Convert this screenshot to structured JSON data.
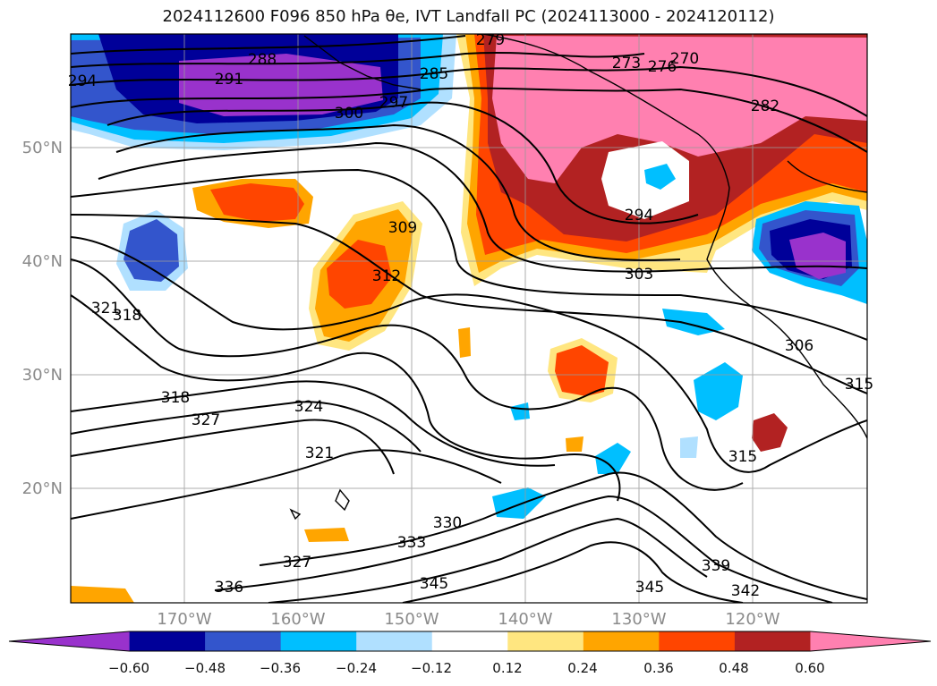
{
  "title": "2024112600 F096 850 hPa θe, IVT Landfall PC (2024113000 - 2024120112)",
  "chart_data": {
    "type": "heatmap",
    "title": "2024112600 F096 850 hPa θe, IVT Landfall PC (2024113000 - 2024120112)",
    "projection": "lat-lon map, North Pacific",
    "extent": {
      "lon": [
        -180,
        -110
      ],
      "lat": [
        10,
        60
      ]
    },
    "lat_ticks": [
      {
        "value": 50,
        "label": "50°N"
      },
      {
        "value": 40,
        "label": "40°N"
      },
      {
        "value": 30,
        "label": "30°N"
      },
      {
        "value": 20,
        "label": "20°N"
      }
    ],
    "lon_ticks": [
      {
        "value": -170,
        "label": "170°W"
      },
      {
        "value": -160,
        "label": "160°W"
      },
      {
        "value": -150,
        "label": "150°W"
      },
      {
        "value": -140,
        "label": "140°W"
      },
      {
        "value": -130,
        "label": "130°W"
      },
      {
        "value": -120,
        "label": "120°W"
      }
    ],
    "grid": true,
    "colorbar": {
      "position": "bottom",
      "extend": "both",
      "levels": [
        -0.72,
        -0.6,
        -0.48,
        -0.36,
        -0.24,
        -0.12,
        0.12,
        0.24,
        0.36,
        0.48,
        0.6,
        0.72
      ],
      "tick_labels": [
        "−0.60",
        "−0.48",
        "−0.36",
        "−0.24",
        "−0.12",
        "0.12",
        "0.24",
        "0.36",
        "0.48",
        "0.60"
      ],
      "colors": [
        "#9932cc",
        "#000099",
        "#3355cc",
        "#00bfff",
        "#b0e0ff",
        "#ffffff",
        "#ffe680",
        "#ffa500",
        "#ff4500",
        "#b22222",
        "#ff80b0"
      ]
    },
    "theta_e_contour_labels": [
      "294",
      "288",
      "291",
      "285",
      "279",
      "273",
      "276",
      "270",
      "300",
      "297",
      "282",
      "294",
      "309",
      "312",
      "303",
      "321",
      "318",
      "306",
      "318",
      "327",
      "324",
      "321",
      "315",
      "315",
      "327",
      "333",
      "330",
      "339",
      "342",
      "336",
      "345",
      "345"
    ],
    "shaded_regions": [
      {
        "name": "negative-pc-gulf-of-alaska",
        "sign": "negative",
        "peak": -0.72,
        "center": [
          -163,
          55
        ]
      },
      {
        "name": "negative-pc-northwest-basin",
        "sign": "negative",
        "peak": -0.36,
        "center": [
          -174,
          40
        ]
      },
      {
        "name": "negative-pc-great-basin",
        "sign": "negative",
        "peak": -0.72,
        "center": [
          -117,
          41
        ]
      },
      {
        "name": "positive-pc-pacific-northwest",
        "sign": "positive",
        "peak": 0.72,
        "center": [
          -128,
          51
        ]
      },
      {
        "name": "positive-pc-central-pacific",
        "sign": "positive",
        "peak": 0.36,
        "center": [
          -153,
          37
        ]
      },
      {
        "name": "positive-pc-subtropics",
        "sign": "positive",
        "peak": 0.36,
        "center": [
          -135,
          30
        ]
      }
    ]
  }
}
